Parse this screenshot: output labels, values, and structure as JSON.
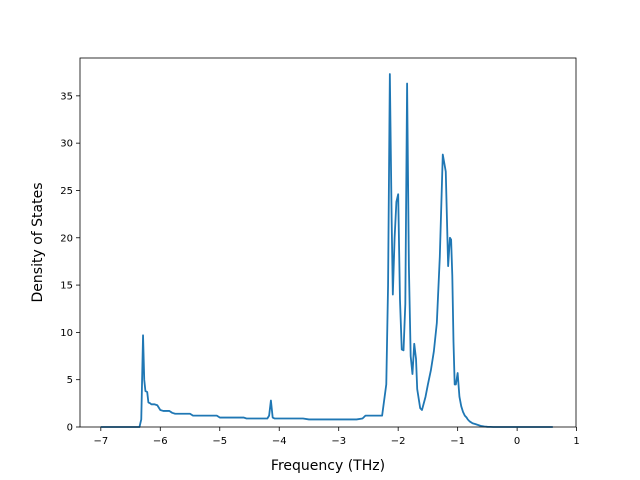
{
  "chart_data": {
    "type": "line",
    "title": "",
    "xlabel": "Frequency (THz)",
    "ylabel": "Density of States",
    "xlim": [
      -7.35,
      0.99
    ],
    "ylim": [
      0,
      39
    ],
    "xticks": [
      -7,
      -6,
      -5,
      -4,
      -3,
      -2,
      -1,
      0,
      1
    ],
    "yticks": [
      0,
      5,
      10,
      15,
      20,
      25,
      30,
      35
    ],
    "grid": false,
    "legend": "none",
    "colors": {
      "line": "#1f77b4",
      "axes": "#000000",
      "background": "#ffffff"
    },
    "series": [
      {
        "x": [
          -7.0,
          -6.8,
          -6.6,
          -6.45,
          -6.35,
          -6.32,
          -6.29,
          -6.27,
          -6.25,
          -6.22,
          -6.2,
          -6.17,
          -6.15,
          -6.1,
          -6.05,
          -6.0,
          -5.95,
          -5.9,
          -5.85,
          -5.8,
          -5.75,
          -5.7,
          -5.6,
          -5.5,
          -5.45,
          -5.4,
          -5.3,
          -5.2,
          -5.1,
          -5.05,
          -5.0,
          -4.9,
          -4.8,
          -4.7,
          -4.6,
          -4.55,
          -4.5,
          -4.4,
          -4.3,
          -4.2,
          -4.17,
          -4.14,
          -4.11,
          -4.08,
          -4.0,
          -3.9,
          -3.8,
          -3.7,
          -3.6,
          -3.5,
          -3.4,
          -3.3,
          -3.2,
          -3.1,
          -3.0,
          -2.9,
          -2.8,
          -2.7,
          -2.6,
          -2.55,
          -2.5,
          -2.4,
          -2.3,
          -2.27,
          -2.2,
          -2.17,
          -2.14,
          -2.11,
          -2.09,
          -2.06,
          -2.03,
          -2.0,
          -1.97,
          -1.94,
          -1.91,
          -1.88,
          -1.85,
          -1.82,
          -1.79,
          -1.76,
          -1.73,
          -1.7,
          -1.68,
          -1.65,
          -1.63,
          -1.6,
          -1.57,
          -1.54,
          -1.5,
          -1.45,
          -1.4,
          -1.35,
          -1.3,
          -1.25,
          -1.2,
          -1.16,
          -1.13,
          -1.11,
          -1.09,
          -1.07,
          -1.05,
          -1.03,
          -1.0,
          -0.97,
          -0.94,
          -0.91,
          -0.88,
          -0.85,
          -0.83,
          -0.8,
          -0.75,
          -0.7,
          -0.65,
          -0.6,
          -0.55,
          -0.5,
          -0.45,
          -0.4,
          -0.35,
          -0.3,
          -0.25,
          -0.2,
          -0.15,
          -0.1,
          -0.05,
          0.0,
          0.1,
          0.2,
          0.3,
          0.4,
          0.5,
          0.6
        ],
        "values": [
          0,
          0,
          0,
          0,
          0,
          0.8,
          9.7,
          5.0,
          3.8,
          3.7,
          2.6,
          2.5,
          2.4,
          2.4,
          2.3,
          1.8,
          1.7,
          1.7,
          1.7,
          1.5,
          1.4,
          1.4,
          1.4,
          1.4,
          1.2,
          1.2,
          1.2,
          1.2,
          1.2,
          1.2,
          1.0,
          1.0,
          1.0,
          1.0,
          1.0,
          0.9,
          0.9,
          0.9,
          0.9,
          0.9,
          1.2,
          2.8,
          1.0,
          0.9,
          0.9,
          0.9,
          0.9,
          0.9,
          0.9,
          0.8,
          0.8,
          0.8,
          0.8,
          0.8,
          0.8,
          0.8,
          0.8,
          0.8,
          0.9,
          1.2,
          1.2,
          1.2,
          1.2,
          1.2,
          4.5,
          15.0,
          37.3,
          22.0,
          14.0,
          20.0,
          23.8,
          24.6,
          13.5,
          8.2,
          8.1,
          13.0,
          36.3,
          17.0,
          7.5,
          5.6,
          8.8,
          7.2,
          4.0,
          2.8,
          2.0,
          1.8,
          2.5,
          3.2,
          4.5,
          6.0,
          8.0,
          11.0,
          18.0,
          28.8,
          27.0,
          17.0,
          20.0,
          19.8,
          16.0,
          9.0,
          4.5,
          4.5,
          5.7,
          3.2,
          2.2,
          1.6,
          1.2,
          1.0,
          0.8,
          0.6,
          0.4,
          0.3,
          0.2,
          0.1,
          0.05,
          0.02,
          0.01,
          0,
          0,
          0,
          0,
          0,
          0,
          0,
          0,
          0,
          0,
          0,
          0,
          0,
          0,
          0
        ]
      }
    ]
  }
}
